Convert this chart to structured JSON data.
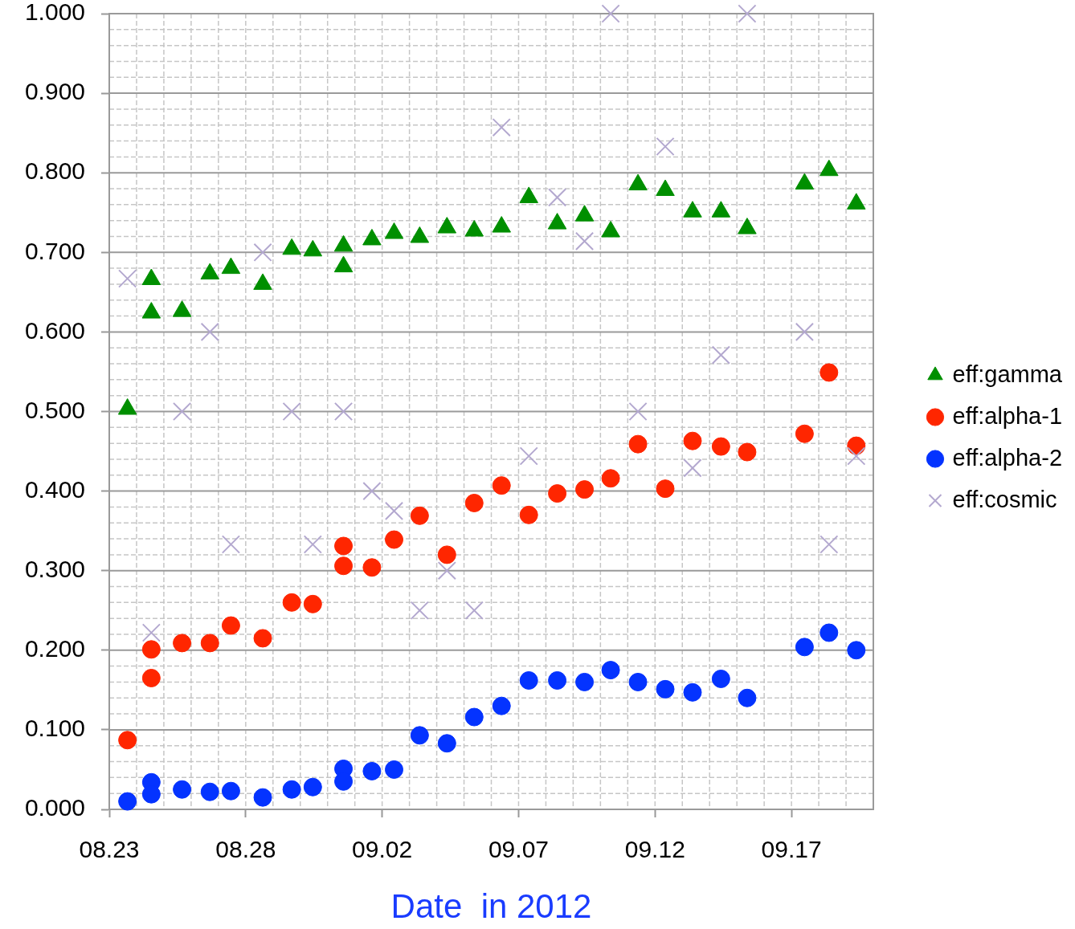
{
  "chart_data": {
    "type": "scatter",
    "xlabel": "Date  in 2012",
    "xlim": [
      "2012-08-23",
      "2012-09-20"
    ],
    "xticks": [
      {
        "value": "2012-08-23",
        "label": "08.23"
      },
      {
        "value": "2012-08-24",
        "label": null
      },
      {
        "value": "2012-08-25",
        "label": null
      },
      {
        "value": "2012-08-26",
        "label": null
      },
      {
        "value": "2012-08-27",
        "label": null
      },
      {
        "value": "2012-08-28",
        "label": "08.28"
      },
      {
        "value": "2012-08-29",
        "label": null
      },
      {
        "value": "2012-08-30",
        "label": null
      },
      {
        "value": "2012-08-31",
        "label": null
      },
      {
        "value": "2012-09-01",
        "label": null
      },
      {
        "value": "2012-09-02",
        "label": "09.02"
      },
      {
        "value": "2012-09-03",
        "label": null
      },
      {
        "value": "2012-09-04",
        "label": null
      },
      {
        "value": "2012-09-05",
        "label": null
      },
      {
        "value": "2012-09-06",
        "label": null
      },
      {
        "value": "2012-09-07",
        "label": "09.07"
      },
      {
        "value": "2012-09-08",
        "label": null
      },
      {
        "value": "2012-09-09",
        "label": null
      },
      {
        "value": "2012-09-10",
        "label": null
      },
      {
        "value": "2012-09-11",
        "label": null
      },
      {
        "value": "2012-09-12",
        "label": "09.12"
      },
      {
        "value": "2012-09-13",
        "label": null
      },
      {
        "value": "2012-09-14",
        "label": null
      },
      {
        "value": "2012-09-15",
        "label": null
      },
      {
        "value": "2012-09-16",
        "label": null
      },
      {
        "value": "2012-09-17",
        "label": "09.17"
      },
      {
        "value": "2012-09-18",
        "label": null
      },
      {
        "value": "2012-09-19",
        "label": null
      }
    ],
    "ylim": [
      0,
      1
    ],
    "yticks": [
      {
        "value": 0,
        "label": "0.000"
      },
      {
        "value": 0.02,
        "label": null
      },
      {
        "value": 0.04,
        "label": null
      },
      {
        "value": 0.06,
        "label": null
      },
      {
        "value": 0.08,
        "label": null
      },
      {
        "value": 0.1,
        "label": "0.100"
      },
      {
        "value": 0.12,
        "label": null
      },
      {
        "value": 0.14,
        "label": null
      },
      {
        "value": 0.16,
        "label": null
      },
      {
        "value": 0.18,
        "label": null
      },
      {
        "value": 0.2,
        "label": "0.200"
      },
      {
        "value": 0.22,
        "label": null
      },
      {
        "value": 0.24,
        "label": null
      },
      {
        "value": 0.26,
        "label": null
      },
      {
        "value": 0.28,
        "label": null
      },
      {
        "value": 0.3,
        "label": "0.300"
      },
      {
        "value": 0.32,
        "label": null
      },
      {
        "value": 0.34,
        "label": null
      },
      {
        "value": 0.36,
        "label": null
      },
      {
        "value": 0.38,
        "label": null
      },
      {
        "value": 0.4,
        "label": "0.400"
      },
      {
        "value": 0.42,
        "label": null
      },
      {
        "value": 0.44,
        "label": null
      },
      {
        "value": 0.46,
        "label": null
      },
      {
        "value": 0.48,
        "label": null
      },
      {
        "value": 0.5,
        "label": "0.500"
      },
      {
        "value": 0.52,
        "label": null
      },
      {
        "value": 0.54,
        "label": null
      },
      {
        "value": 0.56,
        "label": null
      },
      {
        "value": 0.58,
        "label": null
      },
      {
        "value": 0.6,
        "label": "0.600"
      },
      {
        "value": 0.62,
        "label": null
      },
      {
        "value": 0.64,
        "label": null
      },
      {
        "value": 0.66,
        "label": null
      },
      {
        "value": 0.68,
        "label": null
      },
      {
        "value": 0.7,
        "label": "0.700"
      },
      {
        "value": 0.72,
        "label": null
      },
      {
        "value": 0.74,
        "label": null
      },
      {
        "value": 0.76,
        "label": null
      },
      {
        "value": 0.78,
        "label": null
      },
      {
        "value": 0.8,
        "label": "0.800"
      },
      {
        "value": 0.82,
        "label": null
      },
      {
        "value": 0.84,
        "label": null
      },
      {
        "value": 0.86,
        "label": null
      },
      {
        "value": 0.88,
        "label": null
      },
      {
        "value": 0.9,
        "label": "0.900"
      },
      {
        "value": 0.92,
        "label": null
      },
      {
        "value": 0.94,
        "label": null
      },
      {
        "value": 0.96,
        "label": null
      },
      {
        "value": 0.98,
        "label": null
      },
      {
        "value": 1,
        "label": "1.000"
      }
    ],
    "grid": true,
    "legend": "right",
    "series": [
      {
        "name": "eff:gamma",
        "color": "#008f00",
        "marker": "triangle",
        "x": [
          "2012-08-23T16:00",
          "2012-08-24T13:00",
          "2012-08-24T13:00",
          "2012-08-25T16:00",
          "2012-08-26T16:30",
          "2012-08-27T11:00",
          "2012-08-28T15:00",
          "2012-08-29T16:30",
          "2012-08-30T11:00",
          "2012-08-31T14:00",
          "2012-08-31T14:00",
          "2012-09-01T15:00",
          "2012-09-02T10:30",
          "2012-09-03T09:00",
          "2012-09-04T09:00",
          "2012-09-05T09:00",
          "2012-09-06T09:00",
          "2012-09-07T09:00",
          "2012-09-08T10:00",
          "2012-09-09T10:00",
          "2012-09-10T09:00",
          "2012-09-11T09:00",
          "2012-09-12T09:00",
          "2012-09-13T09:00",
          "2012-09-14T10:00",
          "2012-09-15T09:00",
          "2012-09-17T11:30",
          "2012-09-18T09:00",
          "2012-09-19T09:00"
        ],
        "values": [
          0.503,
          0.666,
          0.624,
          0.626,
          0.673,
          0.68,
          0.66,
          0.704,
          0.702,
          0.708,
          0.682,
          0.716,
          0.724,
          0.719,
          0.731,
          0.727,
          0.732,
          0.769,
          0.736,
          0.746,
          0.726,
          0.785,
          0.778,
          0.751,
          0.751,
          0.73,
          0.786,
          0.803,
          0.761
        ]
      },
      {
        "name": "eff:alpha-1",
        "color": "#ff2600",
        "marker": "circle",
        "x": [
          "2012-08-23T16:00",
          "2012-08-24T13:00",
          "2012-08-24T13:00",
          "2012-08-25T16:00",
          "2012-08-26T16:30",
          "2012-08-27T11:00",
          "2012-08-28T15:00",
          "2012-08-29T16:30",
          "2012-08-30T11:00",
          "2012-08-31T14:00",
          "2012-08-31T14:00",
          "2012-09-01T15:00",
          "2012-09-02T10:30",
          "2012-09-03T09:00",
          "2012-09-04T09:00",
          "2012-09-05T09:00",
          "2012-09-06T09:00",
          "2012-09-07T09:00",
          "2012-09-08T10:00",
          "2012-09-09T10:00",
          "2012-09-10T09:00",
          "2012-09-11T09:00",
          "2012-09-12T09:00",
          "2012-09-13T09:00",
          "2012-09-14T10:00",
          "2012-09-15T09:00",
          "2012-09-17T11:30",
          "2012-09-18T09:00",
          "2012-09-19T09:00"
        ],
        "values": [
          0.087,
          0.201,
          0.165,
          0.209,
          0.209,
          0.231,
          0.215,
          0.26,
          0.258,
          0.331,
          0.306,
          0.304,
          0.339,
          0.369,
          0.32,
          0.385,
          0.407,
          0.37,
          0.397,
          0.402,
          0.416,
          0.459,
          0.403,
          0.463,
          0.456,
          0.449,
          0.472,
          0.549,
          0.457
        ]
      },
      {
        "name": "eff:alpha-2",
        "color": "#0433ff",
        "marker": "circle",
        "x": [
          "2012-08-23T16:00",
          "2012-08-24T13:00",
          "2012-08-24T13:00",
          "2012-08-25T16:00",
          "2012-08-26T16:30",
          "2012-08-27T11:00",
          "2012-08-28T15:00",
          "2012-08-29T16:30",
          "2012-08-30T11:00",
          "2012-08-31T14:00",
          "2012-08-31T14:00",
          "2012-09-01T15:00",
          "2012-09-02T10:30",
          "2012-09-03T09:00",
          "2012-09-04T09:00",
          "2012-09-05T09:00",
          "2012-09-06T09:00",
          "2012-09-07T09:00",
          "2012-09-08T10:00",
          "2012-09-09T10:00",
          "2012-09-10T09:00",
          "2012-09-11T09:00",
          "2012-09-12T09:00",
          "2012-09-13T09:00",
          "2012-09-14T10:00",
          "2012-09-15T09:00",
          "2012-09-17T11:30",
          "2012-09-18T09:00",
          "2012-09-19T09:00"
        ],
        "values": [
          0.01,
          0.034,
          0.019,
          0.025,
          0.022,
          0.023,
          0.015,
          0.025,
          0.028,
          0.051,
          0.035,
          0.048,
          0.05,
          0.093,
          0.083,
          0.116,
          0.13,
          0.162,
          0.162,
          0.16,
          0.175,
          0.16,
          0.151,
          0.147,
          0.164,
          0.14,
          0.204,
          0.222,
          0.2
        ]
      },
      {
        "name": "eff:cosmic",
        "color": "#b3a8cf",
        "marker": "cross",
        "x": [
          "2012-08-23T16:00",
          "2012-08-24T13:00",
          "2012-08-25T16:00",
          "2012-08-26T16:30",
          "2012-08-27T11:00",
          "2012-08-28T15:00",
          "2012-08-29T16:30",
          "2012-08-30T11:00",
          "2012-08-31T14:00",
          "2012-09-01T15:00",
          "2012-09-02T10:30",
          "2012-09-03T09:00",
          "2012-09-04T09:00",
          "2012-09-05T09:00",
          "2012-09-06T09:00",
          "2012-09-07T09:00",
          "2012-09-08T10:00",
          "2012-09-09T10:00",
          "2012-09-10T09:00",
          "2012-09-11T09:00",
          "2012-09-12T09:00",
          "2012-09-13T09:00",
          "2012-09-14T10:00",
          "2012-09-15T09:00",
          "2012-09-17T11:30",
          "2012-09-18T09:00",
          "2012-09-19T09:00"
        ],
        "values": [
          0.667,
          0.222,
          0.5,
          0.6,
          0.333,
          0.7,
          0.5,
          0.333,
          0.5,
          0.4,
          0.375,
          0.25,
          0.3,
          0.25,
          0.857,
          0.444,
          0.769,
          0.714,
          1.0,
          0.5,
          0.833,
          0.429,
          0.571,
          1.0,
          0.6,
          0.333,
          0.444
        ]
      }
    ]
  }
}
